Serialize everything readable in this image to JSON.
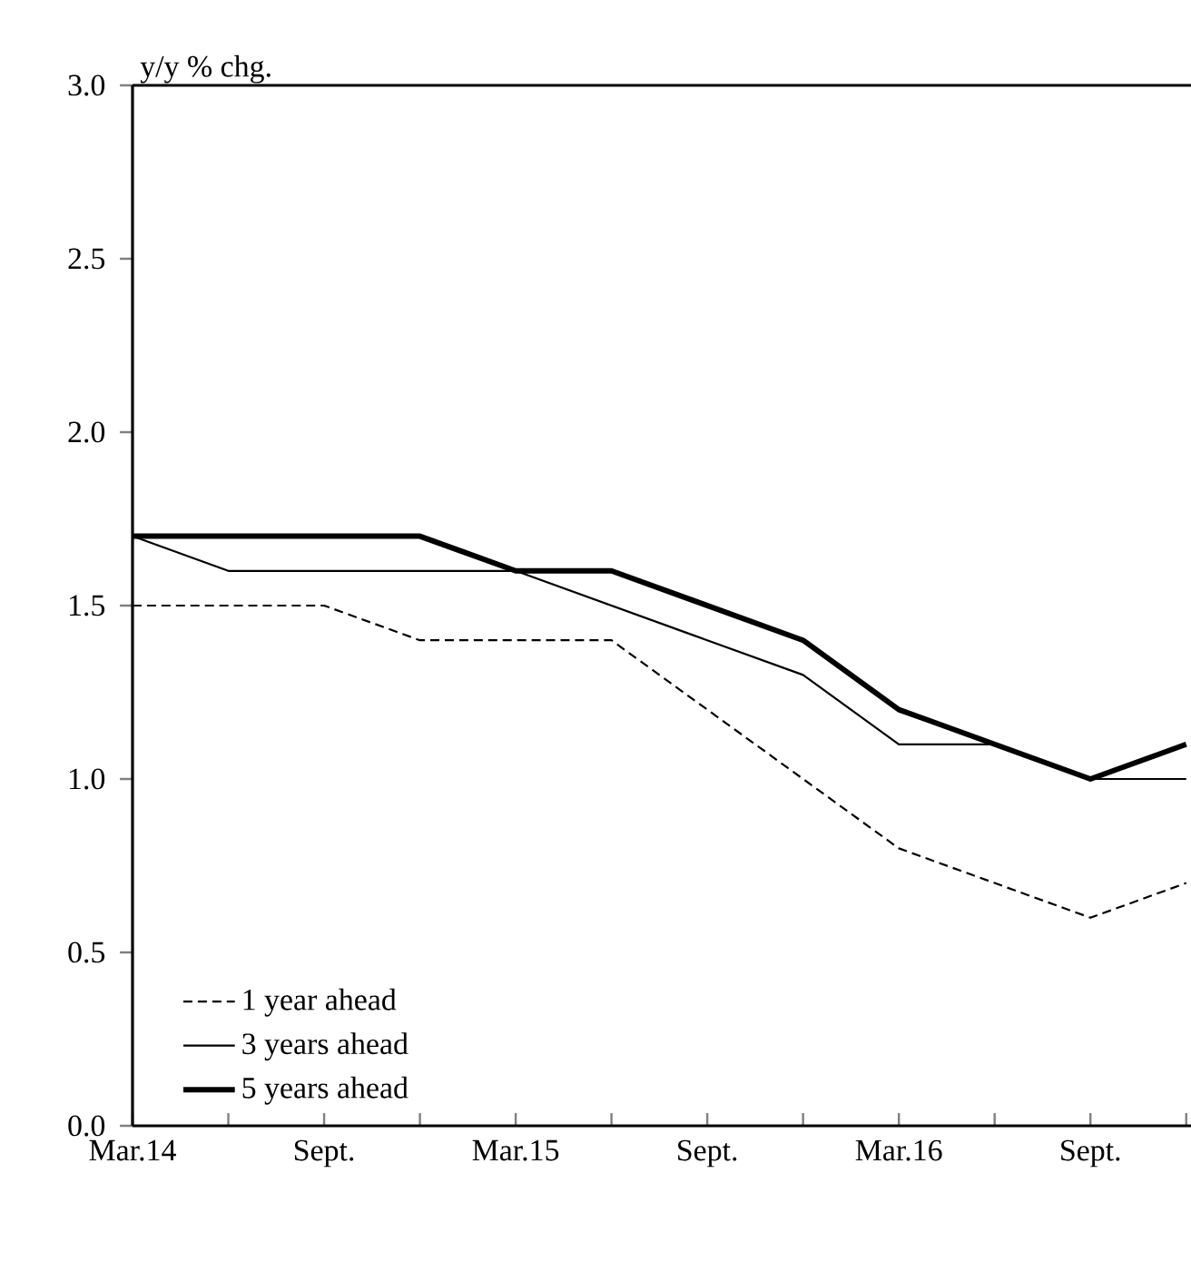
{
  "chart_data": {
    "type": "line",
    "ylabel": "y/y % chg.",
    "categories": [
      "Mar.14",
      null,
      "Sept.",
      null,
      "Mar.15",
      null,
      "Sept.",
      null,
      "Mar.16",
      null,
      "Sept.",
      null
    ],
    "series": [
      {
        "name": "1 year ahead",
        "color": "#000000",
        "line_style": "dashed",
        "values": [
          1.5,
          1.5,
          1.5,
          1.4,
          1.4,
          1.4,
          1.2,
          1.0,
          0.8,
          0.7,
          0.6,
          0.7
        ]
      },
      {
        "name": "3 years ahead",
        "color": "#000000",
        "line_style": "solid",
        "values": [
          1.7,
          1.6,
          1.6,
          1.6,
          1.6,
          1.5,
          1.4,
          1.3,
          1.1,
          1.1,
          1.0,
          1.0
        ]
      },
      {
        "name": "5 years ahead",
        "color": "#000000",
        "line_style": "solid",
        "values": [
          1.7,
          1.7,
          1.7,
          1.7,
          1.6,
          1.6,
          1.5,
          1.4,
          1.2,
          1.1,
          1.0,
          1.1
        ]
      }
    ],
    "ylim": [
      0,
      3.0
    ],
    "yticks": [
      {
        "value": 0,
        "label": "0.0"
      },
      {
        "value": 0.5,
        "label": "0.5"
      },
      {
        "value": 1.0,
        "label": "1.0"
      },
      {
        "value": 1.5,
        "label": "1.5"
      },
      {
        "value": 2.0,
        "label": "2.0"
      },
      {
        "value": 2.5,
        "label": "2.5"
      },
      {
        "value": 3.0,
        "label": "3.0"
      }
    ],
    "grid": false,
    "legend": "bottom left",
    "marker": "none"
  }
}
